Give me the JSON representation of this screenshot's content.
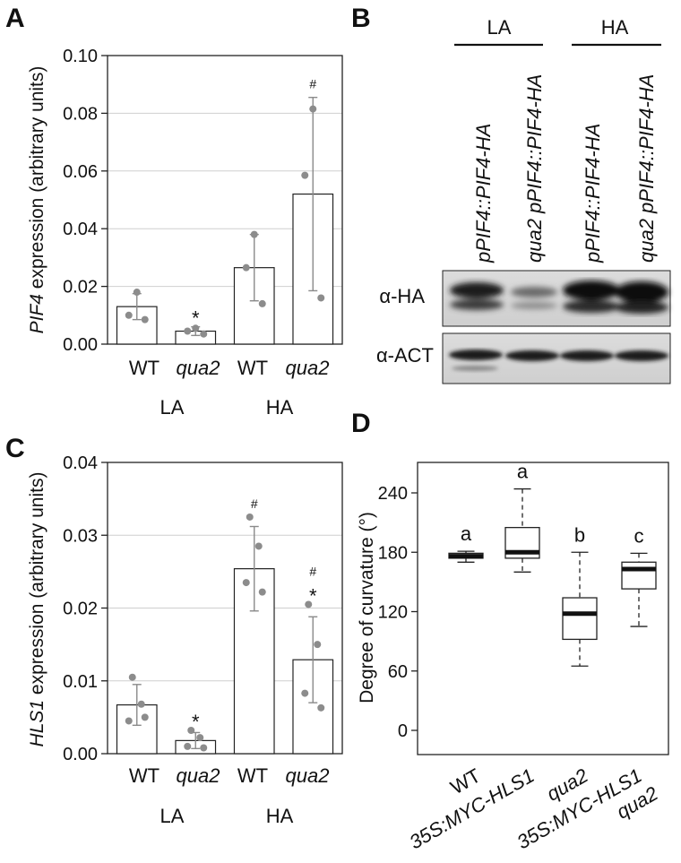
{
  "panels": {
    "A": {
      "letter": "A",
      "ylabel_gene": "PIF4",
      "ylabel_rest": " expression (arbitrary units)",
      "yticks": [
        "0.00",
        "0.02",
        "0.04",
        "0.06",
        "0.08",
        "0.10"
      ],
      "groups": [
        "LA",
        "HA"
      ],
      "categories": [
        "WT",
        "qua2",
        "WT",
        "qua2"
      ],
      "categories_italic": [
        false,
        true,
        false,
        true
      ]
    },
    "B": {
      "letter": "B",
      "groups": [
        "LA",
        "HA"
      ],
      "lanes": [
        {
          "prefix": "",
          "label": "pPIF4::PIF4-HA"
        },
        {
          "prefix": "qua2 ",
          "label": "pPIF4::PIF4-HA"
        },
        {
          "prefix": "",
          "label": "pPIF4::PIF4-HA"
        },
        {
          "prefix": "qua2 ",
          "label": "pPIF4::PIF4-HA"
        }
      ],
      "blots": [
        "α-HA",
        "α-ACT"
      ]
    },
    "C": {
      "letter": "C",
      "ylabel_gene": "HLS1",
      "ylabel_rest": " expression (arbitrary units)",
      "yticks": [
        "0.00",
        "0.01",
        "0.02",
        "0.03",
        "0.04"
      ],
      "groups": [
        "LA",
        "HA"
      ],
      "categories": [
        "WT",
        "qua2",
        "WT",
        "qua2"
      ],
      "categories_italic": [
        false,
        true,
        false,
        true
      ]
    },
    "D": {
      "letter": "D",
      "ylabel": "Degree of curvature (°)",
      "yticks": [
        "0",
        "60",
        "120",
        "180",
        "240"
      ],
      "categories": [
        {
          "line1": "WT",
          "line2": ""
        },
        {
          "line1": "35S:MYC-HLS1",
          "line2": ""
        },
        {
          "line1": "qua2",
          "line2": ""
        },
        {
          "line1": "35S:MYC-HLS1",
          "line2": "qua2"
        }
      ]
    }
  },
  "chart_data": [
    {
      "panel": "A",
      "type": "bar",
      "ylabel": "PIF4 expression (arbitrary units)",
      "ylim": [
        0,
        0.1
      ],
      "groups": [
        "LA",
        "HA"
      ],
      "categories": [
        "WT",
        "qua2",
        "WT",
        "qua2"
      ],
      "values": [
        0.013,
        0.0045,
        0.0265,
        0.052
      ],
      "error": [
        0.0045,
        0.0015,
        0.0115,
        0.0335
      ],
      "points": [
        [
          0.018,
          0.01,
          0.0085
        ],
        [
          0.0055,
          0.0045,
          0.0035
        ],
        [
          0.038,
          0.0265,
          0.014
        ],
        [
          0.0815,
          0.0585,
          0.016
        ]
      ],
      "annotations": [
        "",
        "*",
        "",
        "#"
      ],
      "grid": true
    },
    {
      "panel": "C",
      "type": "bar",
      "ylabel": "HLS1 expression (arbitrary units)",
      "ylim": [
        0,
        0.04
      ],
      "groups": [
        "LA",
        "HA"
      ],
      "categories": [
        "WT",
        "qua2",
        "WT",
        "qua2"
      ],
      "values": [
        0.0067,
        0.0018,
        0.0254,
        0.0129
      ],
      "error": [
        0.0028,
        0.0011,
        0.0058,
        0.0059
      ],
      "points": [
        [
          0.0105,
          0.0068,
          0.0045,
          0.005
        ],
        [
          0.0032,
          0.0022,
          0.001,
          0.0008
        ],
        [
          0.0325,
          0.0285,
          0.0235,
          0.0222
        ],
        [
          0.0205,
          0.015,
          0.0083,
          0.0063
        ]
      ],
      "annotations": [
        "",
        "*",
        "#",
        "#*"
      ],
      "grid": true
    },
    {
      "panel": "D",
      "type": "box",
      "ylabel": "Degree of curvature (°)",
      "ylim": [
        -10,
        270
      ],
      "categories": [
        "WT",
        "35S:MYC-HLS1",
        "qua2",
        "35S:MYC-HLS1 qua2"
      ],
      "boxes": [
        {
          "min": 170,
          "q1": 174,
          "median": 176,
          "q3": 179,
          "max": 181
        },
        {
          "min": 160,
          "q1": 174,
          "median": 180,
          "q3": 205,
          "max": 244
        },
        {
          "min": 65,
          "q1": 92,
          "median": 118,
          "q3": 134,
          "max": 180
        },
        {
          "min": 105,
          "q1": 143,
          "median": 163,
          "q3": 170,
          "max": 179
        }
      ],
      "letters": [
        "a",
        "a",
        "b",
        "c"
      ]
    }
  ]
}
